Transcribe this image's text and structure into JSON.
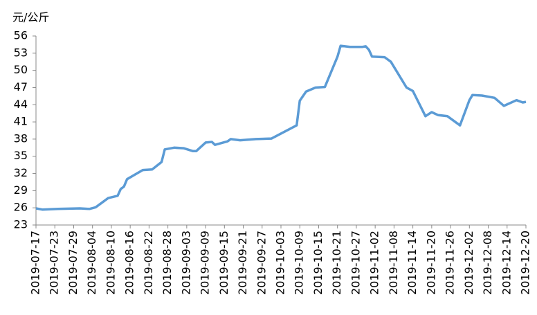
{
  "chart_data": {
    "type": "line",
    "y_label": "元/公斤",
    "x": [
      "2019-07-17",
      "2019-07-19",
      "2019-07-24",
      "2019-07-31",
      "2019-08-03",
      "2019-08-05",
      "2019-08-09",
      "2019-08-12",
      "2019-08-13",
      "2019-08-14",
      "2019-08-15",
      "2019-08-20",
      "2019-08-23",
      "2019-08-26",
      "2019-08-27",
      "2019-08-30",
      "2019-09-02",
      "2019-09-05",
      "2019-09-06",
      "2019-09-09",
      "2019-09-11",
      "2019-09-12",
      "2019-09-16",
      "2019-09-17",
      "2019-09-20",
      "2019-09-25",
      "2019-09-30",
      "2019-10-08",
      "2019-10-09",
      "2019-10-11",
      "2019-10-14",
      "2019-10-17",
      "2019-10-21",
      "2019-10-22",
      "2019-10-25",
      "2019-10-29",
      "2019-10-30",
      "2019-10-31",
      "2019-11-01",
      "2019-11-05",
      "2019-11-07",
      "2019-11-12",
      "2019-11-14",
      "2019-11-18",
      "2019-11-20",
      "2019-11-22",
      "2019-11-25",
      "2019-11-29",
      "2019-12-02",
      "2019-12-03",
      "2019-12-06",
      "2019-12-10",
      "2019-12-13",
      "2019-12-17",
      "2019-12-19",
      "2019-12-20"
    ],
    "series": [
      {
        "color": "#5b9bd5",
        "values": [
          25.9,
          25.7,
          25.8,
          25.9,
          25.8,
          26.1,
          27.7,
          28.1,
          29.3,
          29.7,
          31.0,
          32.6,
          32.7,
          34.0,
          36.2,
          36.5,
          36.4,
          35.9,
          35.9,
          37.4,
          37.5,
          37.0,
          37.6,
          38.0,
          37.8,
          38.0,
          38.1,
          40.4,
          44.7,
          46.3,
          47.0,
          47.1,
          52.4,
          54.3,
          54.1,
          54.1,
          54.2,
          53.6,
          52.4,
          52.3,
          51.5,
          47.0,
          46.4,
          42.0,
          42.7,
          42.2,
          42.0,
          40.4,
          44.8,
          45.7,
          45.6,
          45.2,
          43.8,
          44.8,
          44.4,
          44.5
        ]
      }
    ],
    "xlim": [
      "2019-07-17",
      "2019-12-20"
    ],
    "xticks": [
      "2019-07-17",
      "2019-07-23",
      "2019-07-29",
      "2019-08-04",
      "2019-08-10",
      "2019-08-16",
      "2019-08-22",
      "2019-08-28",
      "2019-09-03",
      "2019-09-09",
      "2019-09-15",
      "2019-09-21",
      "2019-09-27",
      "2019-10-03",
      "2019-10-09",
      "2019-10-15",
      "2019-10-21",
      "2019-10-27",
      "2019-11-02",
      "2019-11-08",
      "2019-11-14",
      "2019-11-20",
      "2019-11-26",
      "2019-12-02",
      "2019-12-08",
      "2019-12-14",
      "2019-12-20"
    ],
    "ylim": [
      23,
      56
    ],
    "yticks": [
      23,
      26,
      29,
      32,
      35,
      38,
      41,
      44,
      47,
      50,
      53,
      56
    ],
    "grid": false
  }
}
